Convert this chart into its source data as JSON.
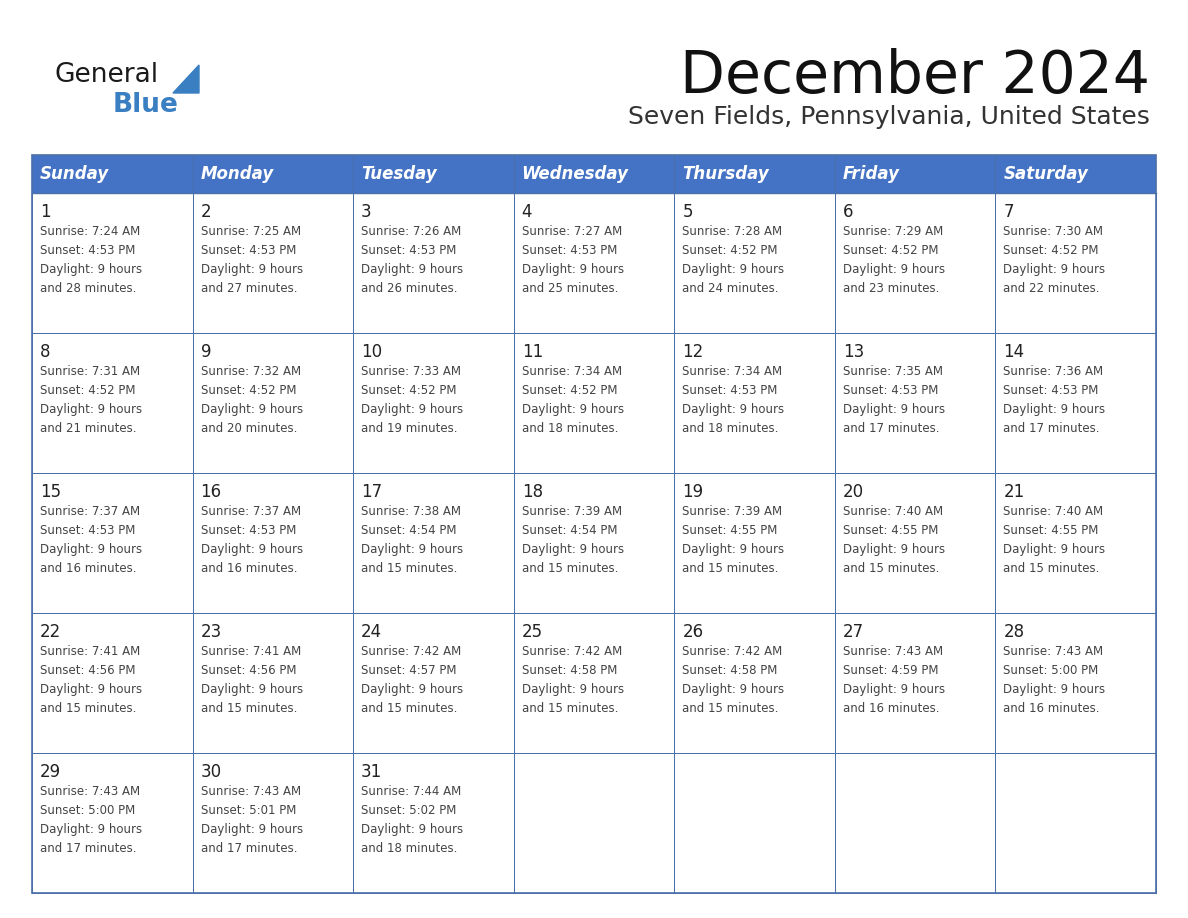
{
  "title": "December 2024",
  "subtitle": "Seven Fields, Pennsylvania, United States",
  "header_bg": "#4472C4",
  "header_text_color": "#FFFFFF",
  "cell_bg": "#FFFFFF",
  "cell_border_color": "#4b6fa8",
  "day_number_color": "#222222",
  "cell_text_color": "#444444",
  "days_of_week": [
    "Sunday",
    "Monday",
    "Tuesday",
    "Wednesday",
    "Thursday",
    "Friday",
    "Saturday"
  ],
  "weeks": [
    [
      {
        "day": 1,
        "sunrise": "7:24 AM",
        "sunset": "4:53 PM",
        "daylight_h": "9 hours",
        "daylight_m": "and 28 minutes."
      },
      {
        "day": 2,
        "sunrise": "7:25 AM",
        "sunset": "4:53 PM",
        "daylight_h": "9 hours",
        "daylight_m": "and 27 minutes."
      },
      {
        "day": 3,
        "sunrise": "7:26 AM",
        "sunset": "4:53 PM",
        "daylight_h": "9 hours",
        "daylight_m": "and 26 minutes."
      },
      {
        "day": 4,
        "sunrise": "7:27 AM",
        "sunset": "4:53 PM",
        "daylight_h": "9 hours",
        "daylight_m": "and 25 minutes."
      },
      {
        "day": 5,
        "sunrise": "7:28 AM",
        "sunset": "4:52 PM",
        "daylight_h": "9 hours",
        "daylight_m": "and 24 minutes."
      },
      {
        "day": 6,
        "sunrise": "7:29 AM",
        "sunset": "4:52 PM",
        "daylight_h": "9 hours",
        "daylight_m": "and 23 minutes."
      },
      {
        "day": 7,
        "sunrise": "7:30 AM",
        "sunset": "4:52 PM",
        "daylight_h": "9 hours",
        "daylight_m": "and 22 minutes."
      }
    ],
    [
      {
        "day": 8,
        "sunrise": "7:31 AM",
        "sunset": "4:52 PM",
        "daylight_h": "9 hours",
        "daylight_m": "and 21 minutes."
      },
      {
        "day": 9,
        "sunrise": "7:32 AM",
        "sunset": "4:52 PM",
        "daylight_h": "9 hours",
        "daylight_m": "and 20 minutes."
      },
      {
        "day": 10,
        "sunrise": "7:33 AM",
        "sunset": "4:52 PM",
        "daylight_h": "9 hours",
        "daylight_m": "and 19 minutes."
      },
      {
        "day": 11,
        "sunrise": "7:34 AM",
        "sunset": "4:52 PM",
        "daylight_h": "9 hours",
        "daylight_m": "and 18 minutes."
      },
      {
        "day": 12,
        "sunrise": "7:34 AM",
        "sunset": "4:53 PM",
        "daylight_h": "9 hours",
        "daylight_m": "and 18 minutes."
      },
      {
        "day": 13,
        "sunrise": "7:35 AM",
        "sunset": "4:53 PM",
        "daylight_h": "9 hours",
        "daylight_m": "and 17 minutes."
      },
      {
        "day": 14,
        "sunrise": "7:36 AM",
        "sunset": "4:53 PM",
        "daylight_h": "9 hours",
        "daylight_m": "and 17 minutes."
      }
    ],
    [
      {
        "day": 15,
        "sunrise": "7:37 AM",
        "sunset": "4:53 PM",
        "daylight_h": "9 hours",
        "daylight_m": "and 16 minutes."
      },
      {
        "day": 16,
        "sunrise": "7:37 AM",
        "sunset": "4:53 PM",
        "daylight_h": "9 hours",
        "daylight_m": "and 16 minutes."
      },
      {
        "day": 17,
        "sunrise": "7:38 AM",
        "sunset": "4:54 PM",
        "daylight_h": "9 hours",
        "daylight_m": "and 15 minutes."
      },
      {
        "day": 18,
        "sunrise": "7:39 AM",
        "sunset": "4:54 PM",
        "daylight_h": "9 hours",
        "daylight_m": "and 15 minutes."
      },
      {
        "day": 19,
        "sunrise": "7:39 AM",
        "sunset": "4:55 PM",
        "daylight_h": "9 hours",
        "daylight_m": "and 15 minutes."
      },
      {
        "day": 20,
        "sunrise": "7:40 AM",
        "sunset": "4:55 PM",
        "daylight_h": "9 hours",
        "daylight_m": "and 15 minutes."
      },
      {
        "day": 21,
        "sunrise": "7:40 AM",
        "sunset": "4:55 PM",
        "daylight_h": "9 hours",
        "daylight_m": "and 15 minutes."
      }
    ],
    [
      {
        "day": 22,
        "sunrise": "7:41 AM",
        "sunset": "4:56 PM",
        "daylight_h": "9 hours",
        "daylight_m": "and 15 minutes."
      },
      {
        "day": 23,
        "sunrise": "7:41 AM",
        "sunset": "4:56 PM",
        "daylight_h": "9 hours",
        "daylight_m": "and 15 minutes."
      },
      {
        "day": 24,
        "sunrise": "7:42 AM",
        "sunset": "4:57 PM",
        "daylight_h": "9 hours",
        "daylight_m": "and 15 minutes."
      },
      {
        "day": 25,
        "sunrise": "7:42 AM",
        "sunset": "4:58 PM",
        "daylight_h": "9 hours",
        "daylight_m": "and 15 minutes."
      },
      {
        "day": 26,
        "sunrise": "7:42 AM",
        "sunset": "4:58 PM",
        "daylight_h": "9 hours",
        "daylight_m": "and 15 minutes."
      },
      {
        "day": 27,
        "sunrise": "7:43 AM",
        "sunset": "4:59 PM",
        "daylight_h": "9 hours",
        "daylight_m": "and 16 minutes."
      },
      {
        "day": 28,
        "sunrise": "7:43 AM",
        "sunset": "5:00 PM",
        "daylight_h": "9 hours",
        "daylight_m": "and 16 minutes."
      }
    ],
    [
      {
        "day": 29,
        "sunrise": "7:43 AM",
        "sunset": "5:00 PM",
        "daylight_h": "9 hours",
        "daylight_m": "and 17 minutes."
      },
      {
        "day": 30,
        "sunrise": "7:43 AM",
        "sunset": "5:01 PM",
        "daylight_h": "9 hours",
        "daylight_m": "and 17 minutes."
      },
      {
        "day": 31,
        "sunrise": "7:44 AM",
        "sunset": "5:02 PM",
        "daylight_h": "9 hours",
        "daylight_m": "and 18 minutes."
      },
      null,
      null,
      null,
      null
    ]
  ],
  "logo_color_general": "#1a1a1a",
  "logo_color_blue": "#3a7fc1",
  "logo_triangle_color": "#3a7fc1",
  "title_color": "#111111",
  "subtitle_color": "#333333",
  "fig_width": 11.88,
  "fig_height": 9.18,
  "dpi": 100
}
